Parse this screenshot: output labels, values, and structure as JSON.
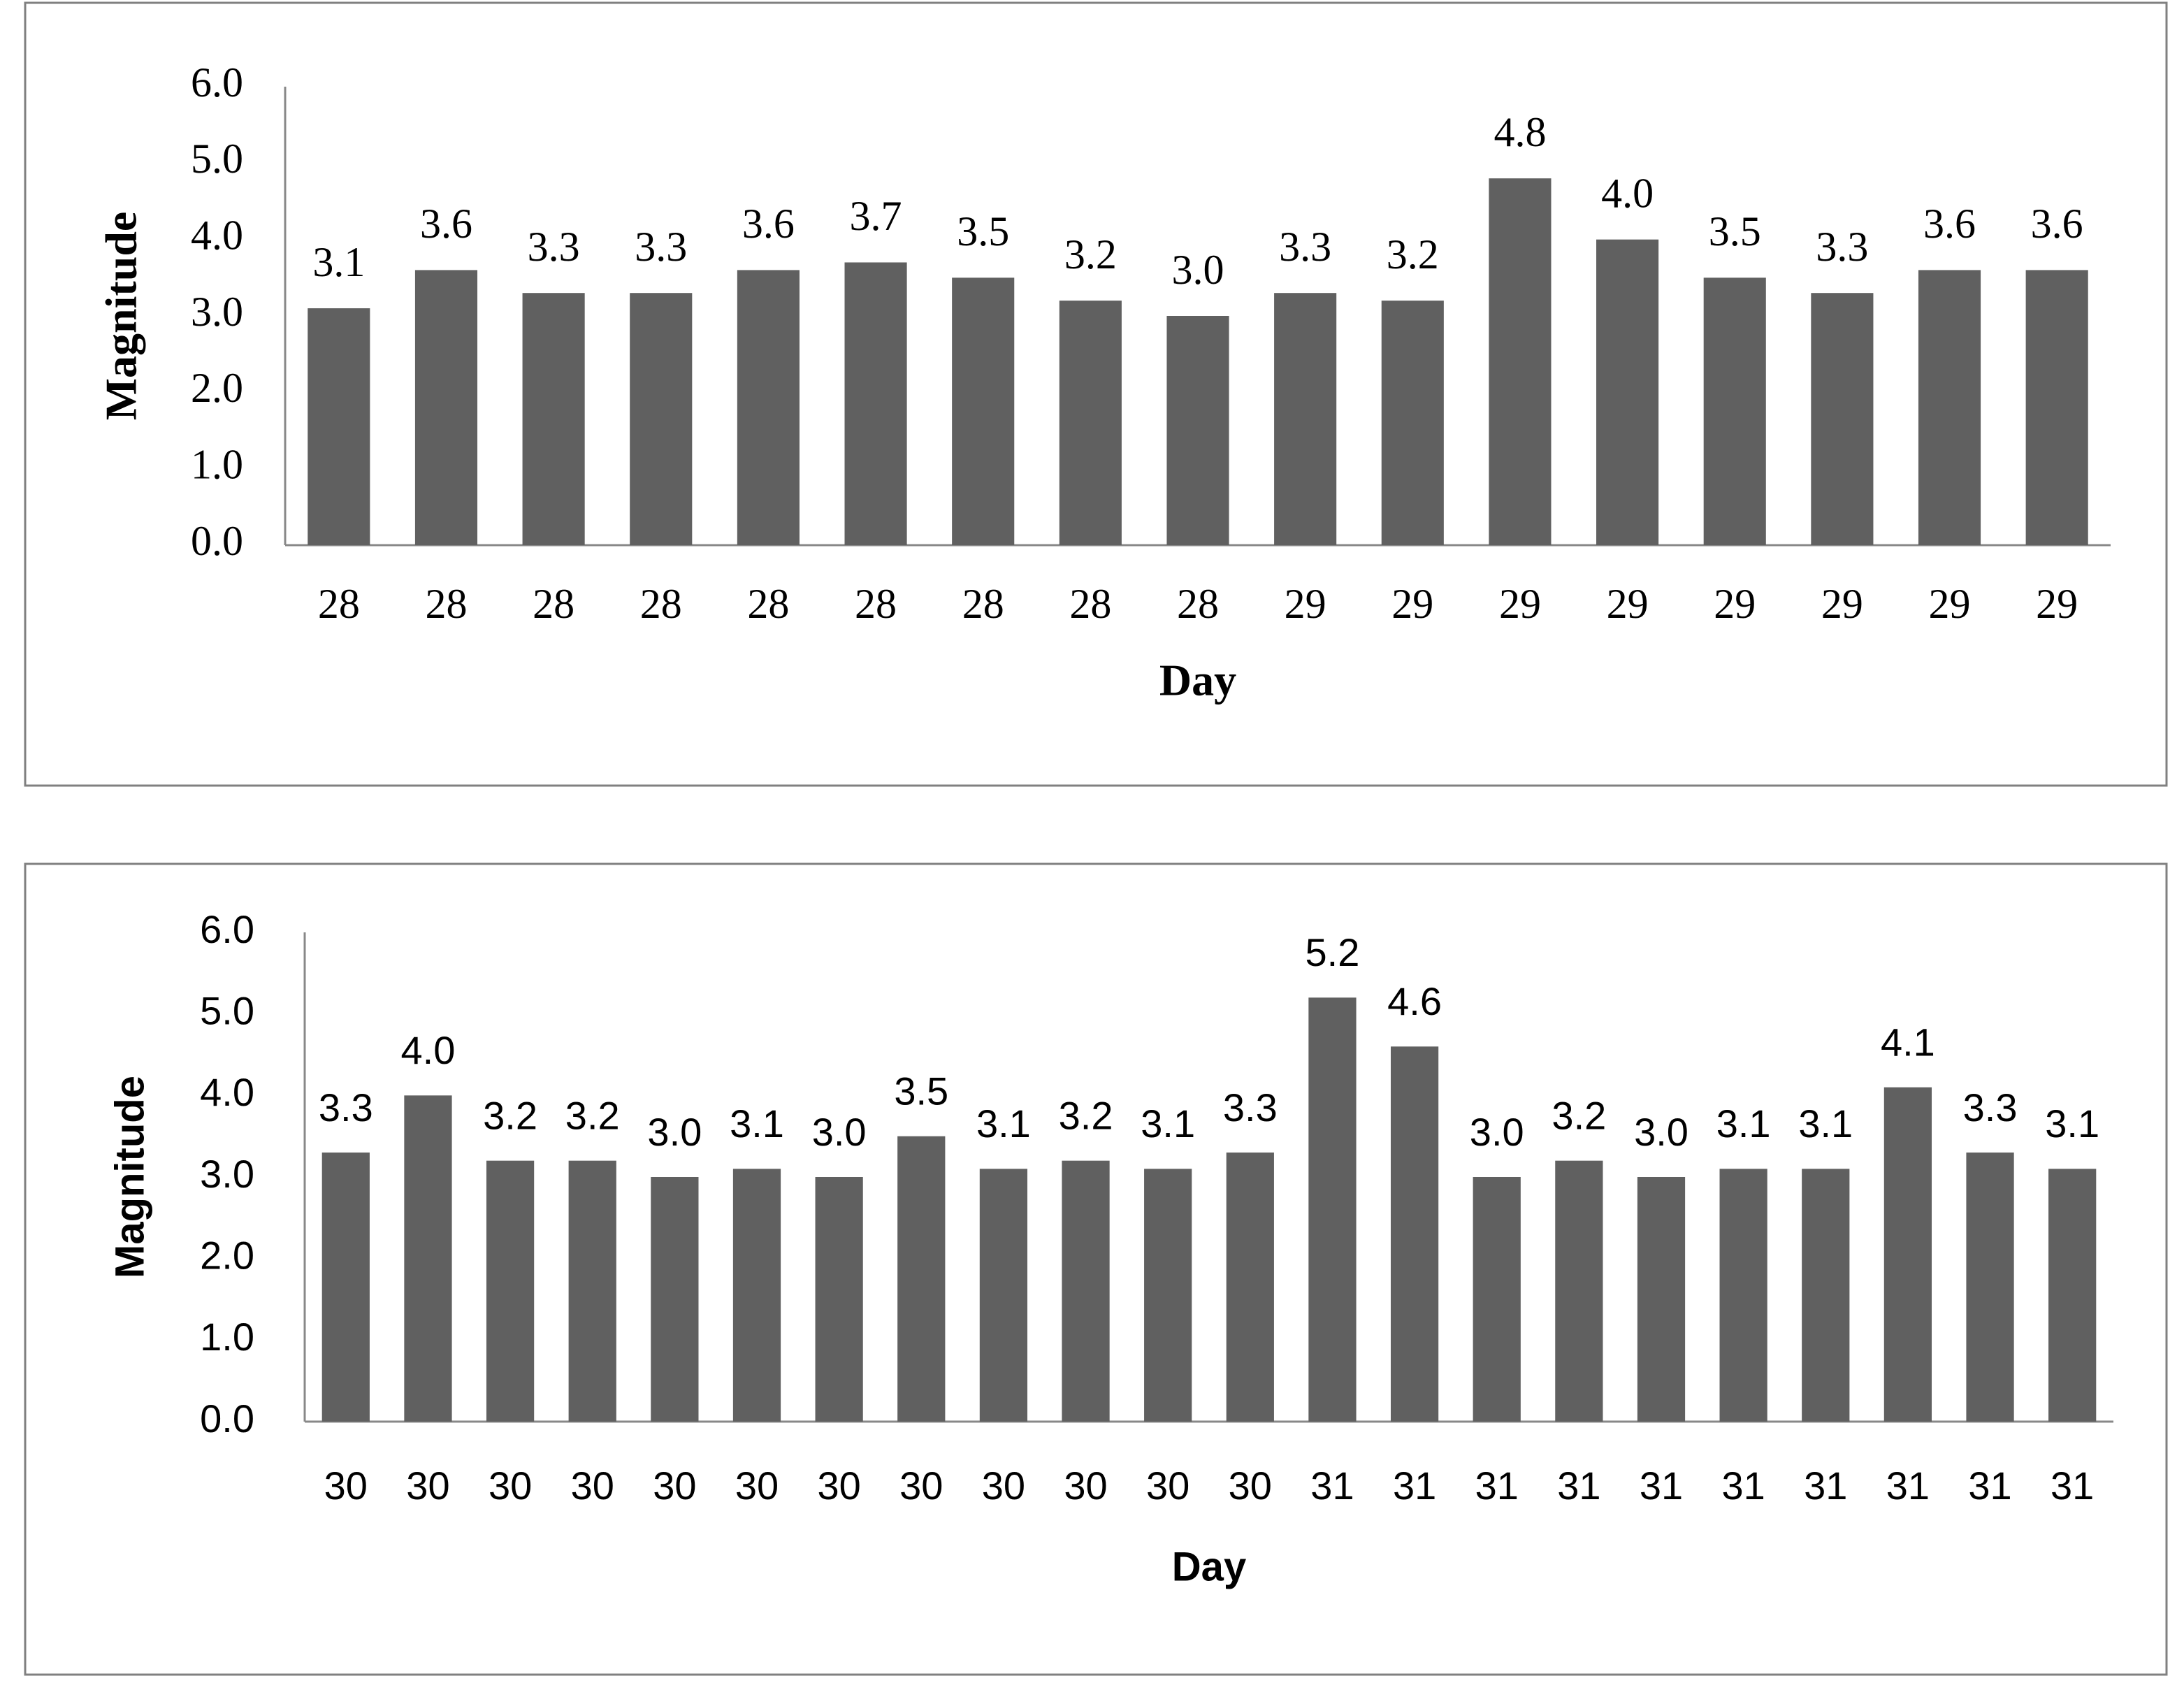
{
  "chart_data": [
    {
      "type": "bar",
      "x_label": "Day",
      "y_label": "Magnitude",
      "categories": [
        "28",
        "28",
        "28",
        "28",
        "28",
        "28",
        "28",
        "28",
        "28",
        "29",
        "29",
        "29",
        "29",
        "29",
        "29",
        "29",
        "29"
      ],
      "values": [
        3.1,
        3.6,
        3.3,
        3.3,
        3.6,
        3.7,
        3.5,
        3.2,
        3.0,
        3.3,
        3.2,
        4.8,
        4.0,
        3.5,
        3.3,
        3.6,
        3.6
      ],
      "value_labels": [
        "3.1",
        "3.6",
        "3.3",
        "3.3",
        "3.6",
        "3.7",
        "3.5",
        "3.2",
        "3.0",
        "3.3",
        "3.2",
        "4.8",
        "4.0",
        "3.5",
        "3.3",
        "3.6",
        "3.6"
      ],
      "color": "#606060",
      "grid": false,
      "ylim": [
        0,
        6
      ],
      "yticks": [
        {
          "value": 0,
          "label": "0.0"
        },
        {
          "value": 1,
          "label": "1.0"
        },
        {
          "value": 2,
          "label": "2.0"
        },
        {
          "value": 3,
          "label": "3.0"
        },
        {
          "value": 4,
          "label": "4.0"
        },
        {
          "value": 5,
          "label": "5.0"
        },
        {
          "value": 6,
          "label": "6.0"
        }
      ]
    },
    {
      "type": "bar",
      "x_label": "Day",
      "y_label": "Magnitude",
      "categories": [
        "30",
        "30",
        "30",
        "30",
        "30",
        "30",
        "30",
        "30",
        "30",
        "30",
        "30",
        "30",
        "31",
        "31",
        "31",
        "31",
        "31",
        "31",
        "31",
        "31",
        "31",
        "31"
      ],
      "values": [
        3.3,
        4.0,
        3.2,
        3.2,
        3.0,
        3.1,
        3.0,
        3.5,
        3.1,
        3.2,
        3.1,
        3.3,
        5.2,
        4.6,
        3.0,
        3.2,
        3.0,
        3.1,
        3.1,
        4.1,
        3.3,
        3.1
      ],
      "value_labels": [
        "3.3",
        "4.0",
        "3.2",
        "3.2",
        "3.0",
        "3.1",
        "3.0",
        "3.5",
        "3.1",
        "3.2",
        "3.1",
        "3.3",
        "5.2",
        "4.6",
        "3.0",
        "3.2",
        "3.0",
        "3.1",
        "3.1",
        "4.1",
        "3.3",
        "3.1"
      ],
      "color": "#606060",
      "grid": false,
      "ylim": [
        0,
        6
      ],
      "yticks": [
        {
          "value": 0,
          "label": "0.0"
        },
        {
          "value": 1,
          "label": "1.0"
        },
        {
          "value": 2,
          "label": "2.0"
        },
        {
          "value": 3,
          "label": "3.0"
        },
        {
          "value": 4,
          "label": "4.0"
        },
        {
          "value": 5,
          "label": "5.0"
        },
        {
          "value": 6,
          "label": "6.0"
        }
      ]
    }
  ]
}
